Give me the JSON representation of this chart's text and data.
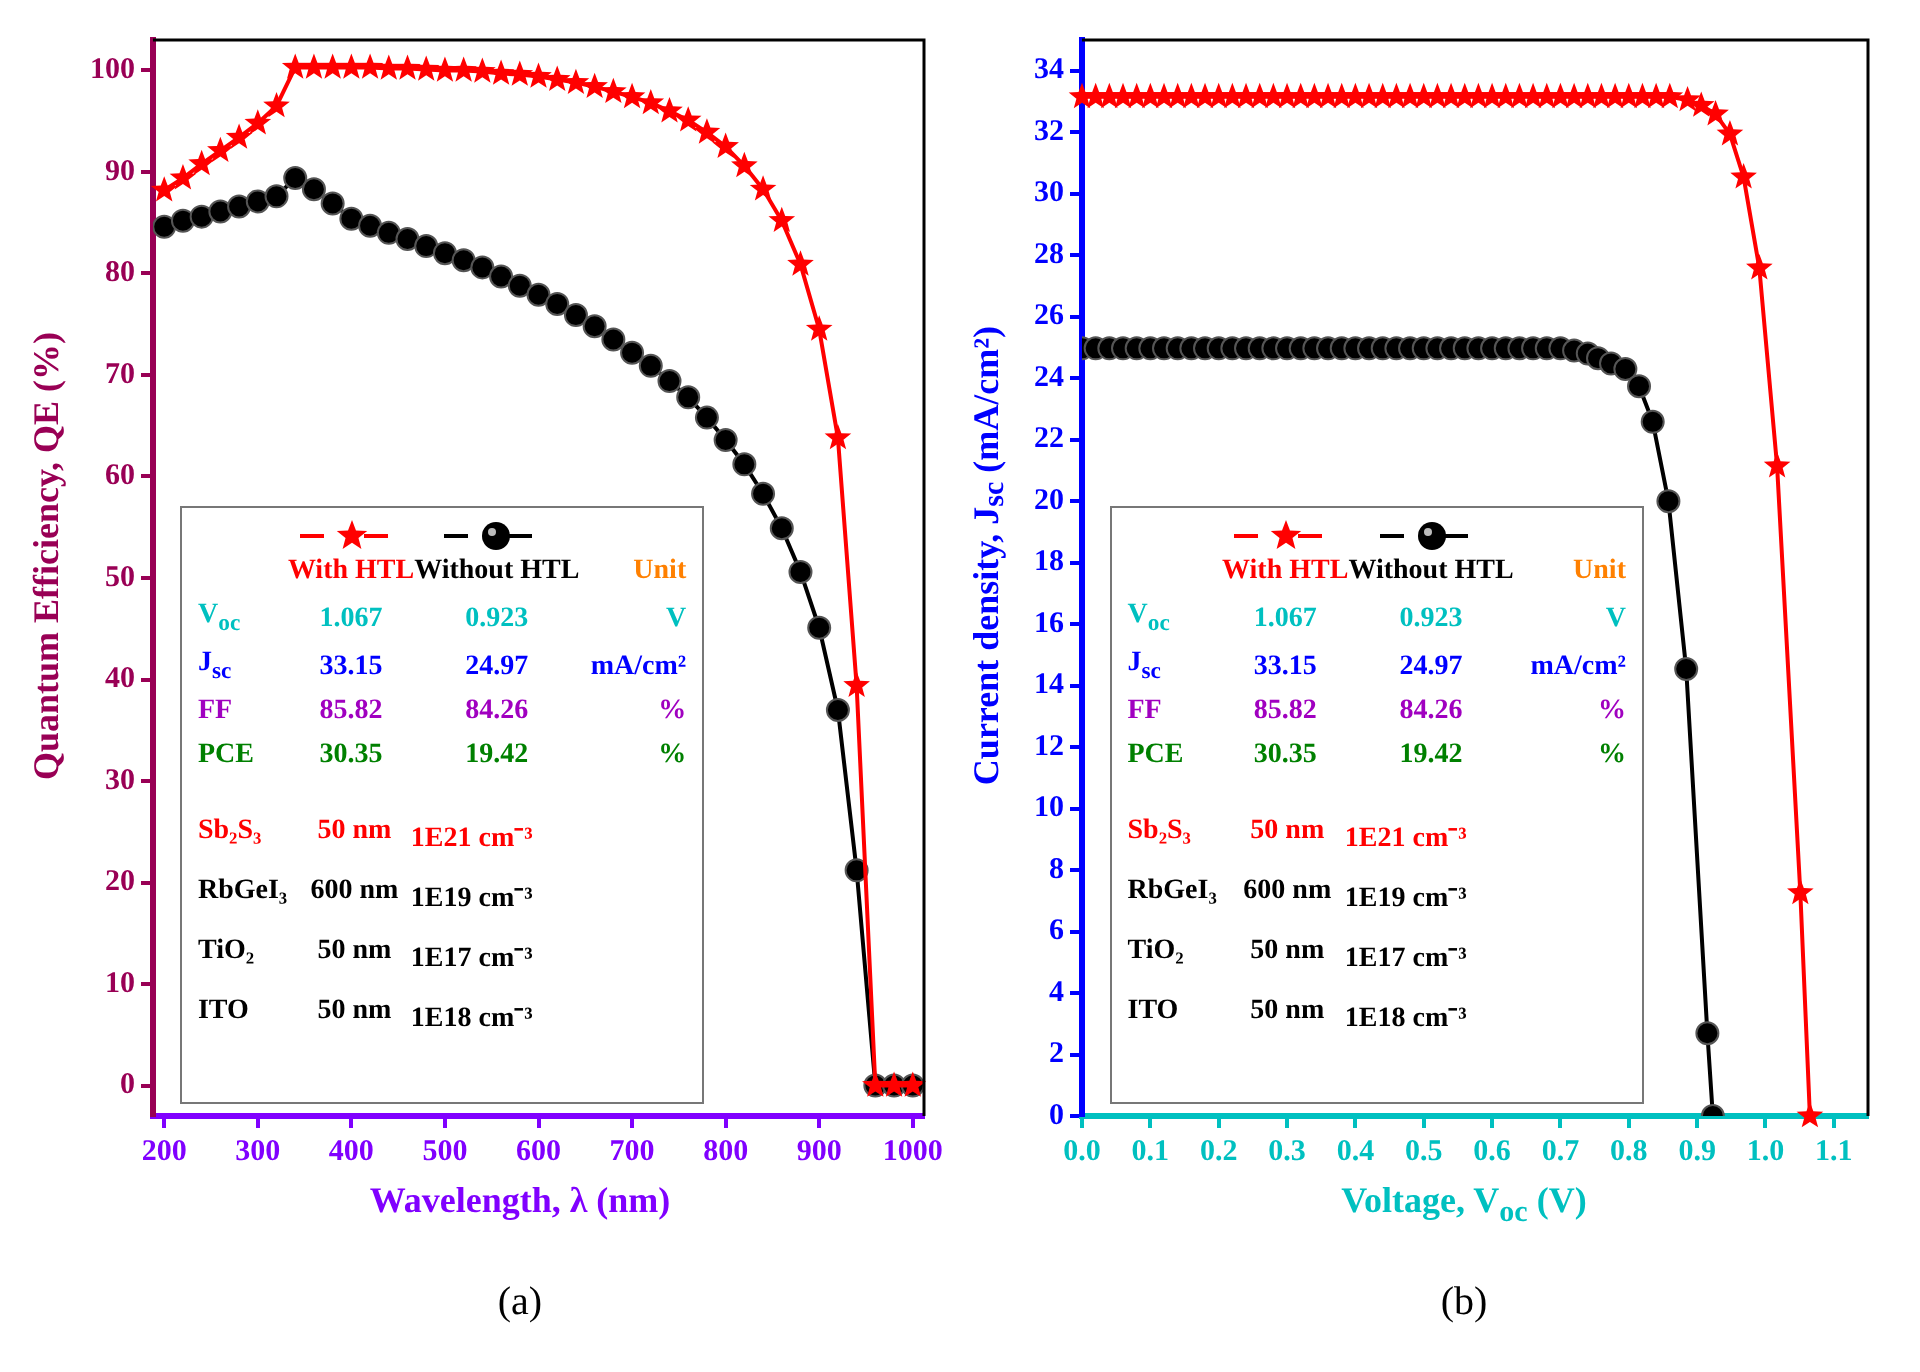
{
  "chart_data": [
    {
      "type": "line",
      "title": "(a)",
      "xlabel": "Wavelength, λ (nm)",
      "ylabel": "Quantum Efficiency, QE (%)",
      "x": [
        200,
        220,
        240,
        260,
        280,
        300,
        320,
        340,
        360,
        380,
        400,
        420,
        440,
        460,
        480,
        500,
        520,
        540,
        560,
        580,
        600,
        620,
        640,
        660,
        680,
        700,
        720,
        740,
        760,
        780,
        800,
        820,
        840,
        860,
        880,
        900,
        920,
        940,
        960,
        980,
        1000
      ],
      "series": [
        {
          "name": "With HTL",
          "color": "#ff0000",
          "marker": "star",
          "values": [
            88.2,
            89.4,
            90.8,
            92.1,
            93.4,
            94.8,
            96.5,
            100.3,
            100.3,
            100.3,
            100.3,
            100.3,
            100.2,
            100.2,
            100.1,
            100.0,
            100.0,
            99.9,
            99.7,
            99.6,
            99.4,
            99.1,
            98.8,
            98.4,
            97.9,
            97.4,
            96.8,
            96.0,
            95.1,
            93.9,
            92.5,
            90.6,
            88.3,
            85.2,
            80.9,
            74.5,
            63.8,
            39.4,
            0,
            0,
            0
          ]
        },
        {
          "name": "Without HTL",
          "color": "#000000",
          "marker": "circle",
          "values": [
            84.6,
            85.2,
            85.6,
            86.1,
            86.6,
            87.1,
            87.6,
            89.4,
            88.3,
            86.9,
            85.4,
            84.7,
            84.0,
            83.4,
            82.7,
            82.0,
            81.3,
            80.6,
            79.7,
            78.8,
            77.9,
            77.0,
            75.9,
            74.8,
            73.5,
            72.2,
            70.9,
            69.4,
            67.8,
            65.8,
            63.6,
            61.2,
            58.3,
            54.9,
            50.6,
            45.1,
            37.0,
            21.2,
            0,
            0,
            0
          ]
        }
      ],
      "xlim": [
        188,
        1012
      ],
      "ylim": [
        -3,
        103
      ],
      "xticks": [
        200,
        300,
        400,
        500,
        600,
        700,
        800,
        900,
        1000
      ],
      "yticks": [
        0,
        10,
        20,
        30,
        40,
        50,
        60,
        70,
        80,
        90,
        100
      ],
      "legend": "left",
      "annotations": [
        "Unit",
        "V$_{oc}$",
        "1.067",
        "0.923",
        "V",
        "J$_{sc}$",
        "33.15",
        "24.97",
        "mA/cm²",
        "FF",
        "85.82",
        "84.26",
        "%",
        "PCE",
        "30.35",
        "19.42",
        "%",
        "Sb₂S₃",
        "50 nm",
        "1E21 cm⁻³",
        "RbGeI₃",
        "600 nm",
        "1E19 cm⁻³",
        "TiO₂",
        "50 nm",
        "1E17 cm⁻³",
        "ITO",
        "50 nm",
        "1E18 cm⁻³"
      ]
    },
    {
      "type": "line",
      "title": "(b)",
      "xlabel": "Voltage, V$_{oc}$ (V)",
      "ylabel": "Current density, J$_{sc}$ (mA/cm²)",
      "series": [
        {
          "name": "With HTL",
          "color": "#ff0000",
          "marker": "star",
          "x": [
            0,
            0.02,
            0.04,
            0.06,
            0.08,
            0.1,
            0.12,
            0.14,
            0.16,
            0.18,
            0.2,
            0.22,
            0.24,
            0.26,
            0.28,
            0.3,
            0.32,
            0.34,
            0.36,
            0.38,
            0.4,
            0.42,
            0.44,
            0.46,
            0.48,
            0.5,
            0.52,
            0.54,
            0.56,
            0.58,
            0.6,
            0.62,
            0.64,
            0.66,
            0.68,
            0.7,
            0.72,
            0.74,
            0.76,
            0.78,
            0.8,
            0.82,
            0.84,
            0.86,
            0.886,
            0.906,
            0.927,
            0.948,
            0.968,
            0.991,
            1.017,
            1.051,
            1.065
          ],
          "values": [
            33.15,
            33.15,
            33.15,
            33.15,
            33.15,
            33.15,
            33.15,
            33.15,
            33.15,
            33.15,
            33.15,
            33.15,
            33.15,
            33.15,
            33.15,
            33.15,
            33.15,
            33.15,
            33.15,
            33.15,
            33.15,
            33.15,
            33.15,
            33.15,
            33.15,
            33.15,
            33.15,
            33.15,
            33.15,
            33.15,
            33.15,
            33.15,
            33.15,
            33.15,
            33.15,
            33.15,
            33.15,
            33.15,
            33.15,
            33.15,
            33.15,
            33.15,
            33.15,
            33.15,
            33.05,
            32.87,
            32.59,
            31.94,
            30.54,
            27.58,
            21.14,
            7.26,
            0
          ]
        },
        {
          "name": "Without HTL",
          "color": "#000000",
          "marker": "circle",
          "x": [
            0,
            0.02,
            0.04,
            0.06,
            0.08,
            0.1,
            0.12,
            0.14,
            0.16,
            0.18,
            0.2,
            0.22,
            0.24,
            0.26,
            0.28,
            0.3,
            0.32,
            0.34,
            0.36,
            0.38,
            0.4,
            0.42,
            0.44,
            0.46,
            0.48,
            0.5,
            0.52,
            0.54,
            0.56,
            0.58,
            0.6,
            0.62,
            0.64,
            0.66,
            0.68,
            0.7,
            0.72,
            0.74,
            0.755,
            0.774,
            0.795,
            0.815,
            0.835,
            0.858,
            0.884,
            0.915,
            0.923
          ],
          "values": [
            24.97,
            24.97,
            24.97,
            24.97,
            24.97,
            24.97,
            24.97,
            24.97,
            24.97,
            24.97,
            24.97,
            24.97,
            24.97,
            24.97,
            24.97,
            24.97,
            24.97,
            24.97,
            24.97,
            24.97,
            24.97,
            24.97,
            24.97,
            24.97,
            24.97,
            24.97,
            24.97,
            24.97,
            24.97,
            24.97,
            24.97,
            24.97,
            24.97,
            24.97,
            24.97,
            24.97,
            24.9,
            24.8,
            24.65,
            24.48,
            24.3,
            23.74,
            22.58,
            20.0,
            14.54,
            2.69,
            0
          ]
        }
      ],
      "xlim": [
        0,
        1.15
      ],
      "ylim": [
        0,
        35
      ],
      "xticks": [
        {
          "value": 0,
          "label": "0.0"
        },
        0.1,
        0.2,
        0.3,
        0.4,
        0.5,
        0.6,
        0.7,
        0.8,
        0.9,
        {
          "value": 1,
          "label": "1.0"
        },
        1.1
      ],
      "yticks": [
        0,
        2,
        4,
        6,
        8,
        10,
        12,
        14,
        16,
        18,
        20,
        22,
        24,
        26,
        28,
        30,
        32,
        34
      ],
      "legend": "left",
      "annotations": [
        "Unit",
        "V$_{oc}$",
        "1.067",
        "0.923",
        "V",
        "J$_{sc}$",
        "33.15",
        "24.97",
        "mA/cm²",
        "FF",
        "85.82",
        "84.26",
        "%",
        "PCE",
        "30.35",
        "19.42",
        "%",
        "Sb₂S₃",
        "50 nm",
        "1E21 cm⁻³",
        "RbGeI₃",
        "600 nm",
        "1E19 cm⁻³",
        "TiO₂",
        "50 nm",
        "1E17 cm⁻³",
        "ITO",
        "50 nm",
        "1E18 cm⁻³"
      ]
    }
  ]
}
